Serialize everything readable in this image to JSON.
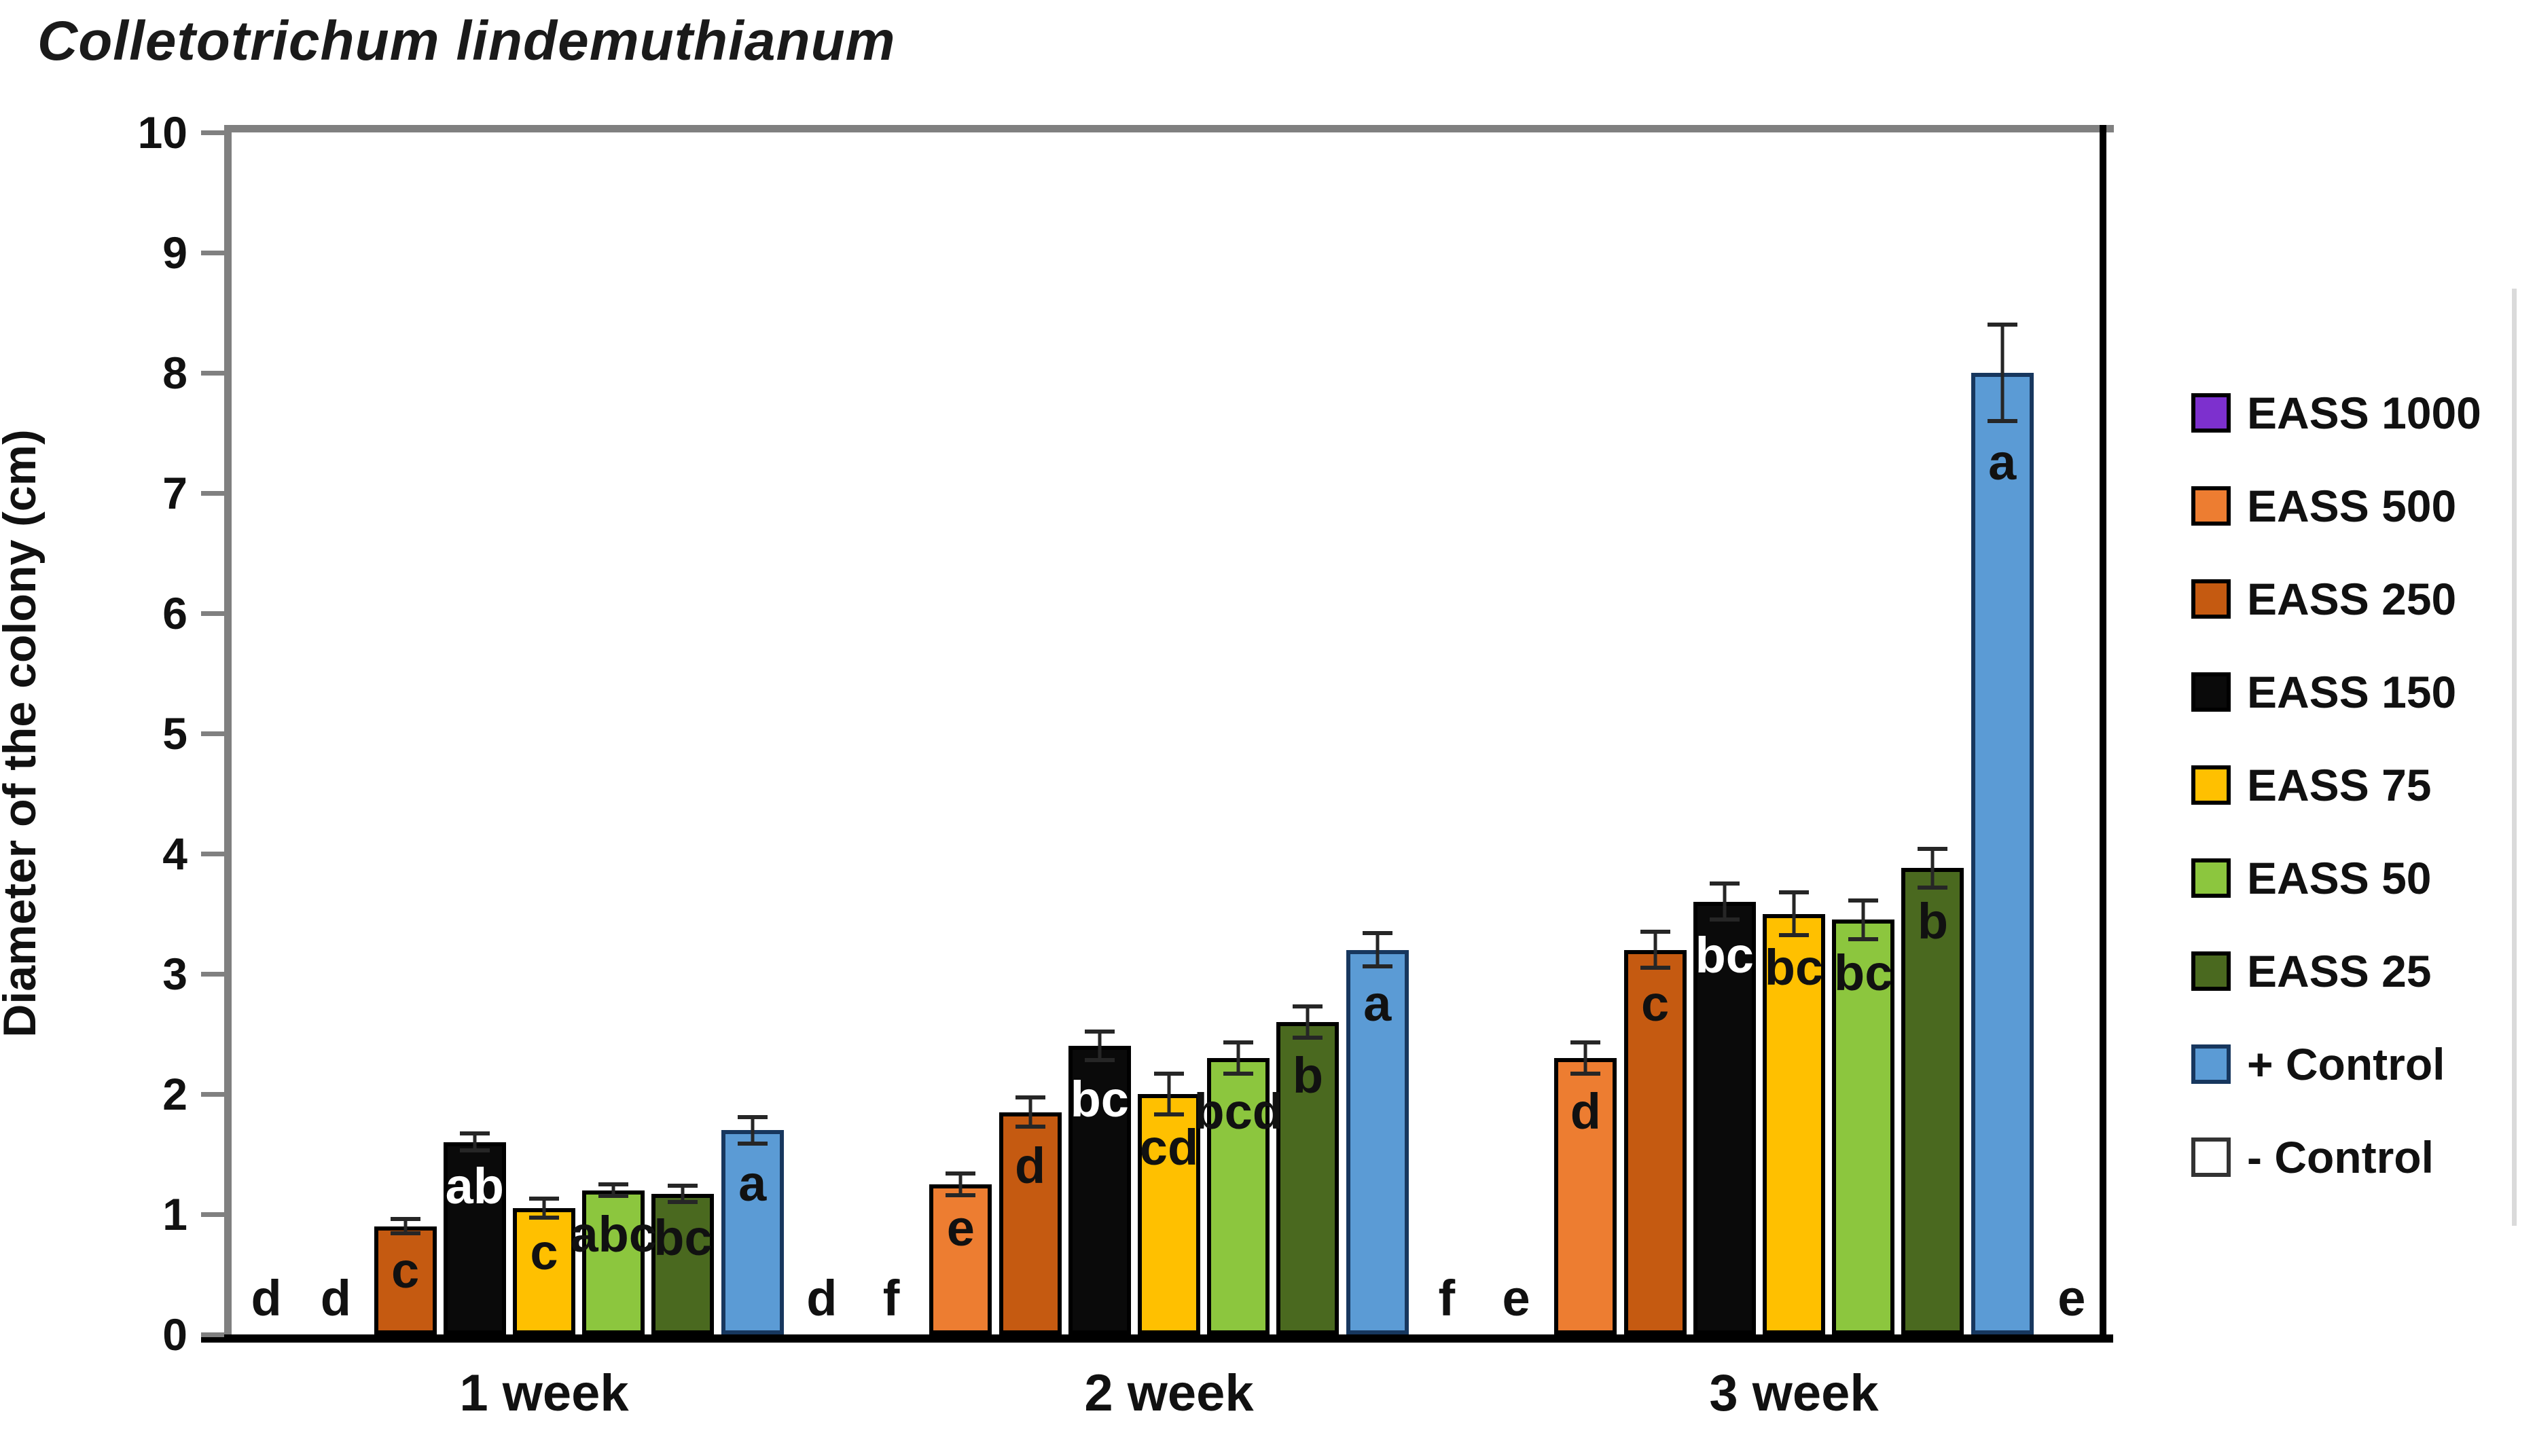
{
  "title": "Colletotrichum lindemuthianum",
  "chart_data": {
    "type": "bar",
    "title": "Colletotrichum lindemuthianum",
    "xlabel": "",
    "ylabel": "Diameter of the colony (cm)",
    "ylim": [
      0,
      10
    ],
    "ytick_step": 1,
    "yticks": [
      0,
      1,
      2,
      3,
      4,
      5,
      6,
      7,
      8,
      9,
      10
    ],
    "grid": false,
    "legend_position": "right",
    "categories": [
      "1 week",
      "2 week",
      "3 week"
    ],
    "series": [
      {
        "name": "EASS 1000",
        "color": "#7D30CE",
        "values": [
          0,
          0,
          0
        ],
        "errors": [
          0,
          0,
          0
        ],
        "letters": [
          "d",
          "f",
          "e"
        ]
      },
      {
        "name": "EASS 500",
        "color": "#ED7D31",
        "values": [
          0,
          1.25,
          2.3
        ],
        "errors": [
          0,
          0.09,
          0.13
        ],
        "letters": [
          "d",
          "e",
          "d"
        ]
      },
      {
        "name": "EASS 250",
        "color": "#C55A11",
        "values": [
          0.9,
          1.85,
          3.2
        ],
        "errors": [
          0.06,
          0.12,
          0.15
        ],
        "letters": [
          "c",
          "d",
          "c"
        ]
      },
      {
        "name": "EASS 150",
        "color": "#0A0A0A",
        "values": [
          1.6,
          2.4,
          3.6
        ],
        "errors": [
          0.07,
          0.12,
          0.15
        ],
        "letters": [
          "ab",
          "bc",
          "bc"
        ],
        "letter_color": "#FFFFFF"
      },
      {
        "name": "EASS 75",
        "color": "#FFC000",
        "values": [
          1.05,
          2.0,
          3.5
        ],
        "errors": [
          0.08,
          0.17,
          0.18
        ],
        "letters": [
          "c",
          "cd",
          "bc"
        ]
      },
      {
        "name": "EASS 50",
        "color": "#8CC63E",
        "values": [
          1.2,
          2.3,
          3.45
        ],
        "errors": [
          0.05,
          0.13,
          0.16
        ],
        "letters": [
          "abc",
          "bcd",
          "bc"
        ]
      },
      {
        "name": "EASS 25",
        "color": "#4A691F",
        "values": [
          1.17,
          2.6,
          3.88
        ],
        "errors": [
          0.07,
          0.13,
          0.16
        ],
        "letters": [
          "bc",
          "b",
          "b"
        ]
      },
      {
        "name": "+ Control",
        "color": "#5B9BD5",
        "values": [
          1.7,
          3.2,
          8.0
        ],
        "errors": [
          0.11,
          0.14,
          0.4
        ],
        "letters": [
          "a",
          "a",
          "a"
        ],
        "border_color": "#17375E"
      },
      {
        "name": "- Control",
        "color": "#FFFFFF",
        "values": [
          0,
          0,
          0
        ],
        "errors": [
          0,
          0,
          0
        ],
        "letters": [
          "d",
          "f",
          "e"
        ],
        "border_color": "#333333"
      }
    ]
  },
  "colors": {
    "axis_gray": "#808080",
    "baseline_black": "#000000",
    "error_bar": "#262626",
    "letter_default": "#111111",
    "edge_line": "#DADADA",
    "background": "#FFFFFF"
  }
}
